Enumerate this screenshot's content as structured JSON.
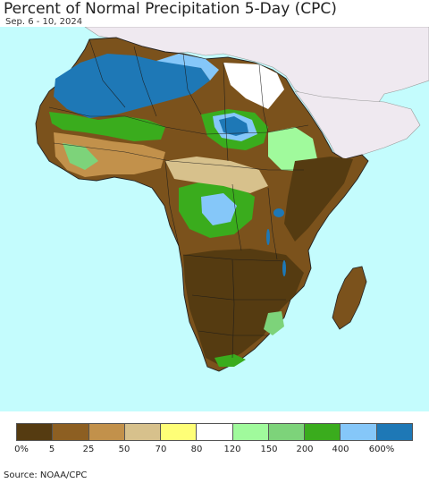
{
  "title": "Percent of Normal Precipitation 5-Day (CPC)",
  "subtitle": "Sep. 6 - 10, 2024",
  "source": "Source: NOAA/CPC",
  "colors": {
    "ocean": "#c4fcfd",
    "non_africa_land": "#efe9f0",
    "border": "#1a1a1a"
  },
  "legend": {
    "colors": [
      "#553b11",
      "#8d5f22",
      "#c2914b",
      "#d7c18c",
      "#fefe77",
      "#ffffff",
      "#a0fa9c",
      "#7dd37a",
      "#3aac1d",
      "#85c7f9",
      "#1e78b6"
    ],
    "labels": [
      "0%",
      "5",
      "25",
      "50",
      "70",
      "80",
      "120",
      "150",
      "200",
      "400",
      "600%"
    ]
  }
}
